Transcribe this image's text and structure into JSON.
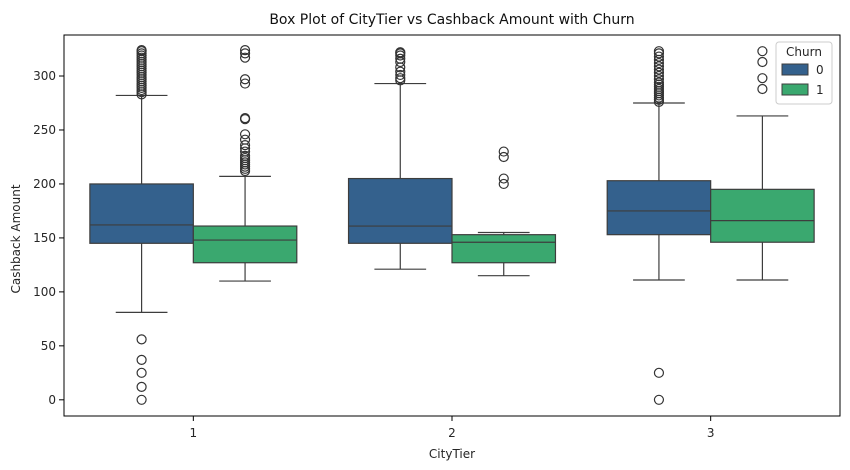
{
  "chart_data": {
    "type": "boxplot",
    "title": "Box Plot of CityTier vs Cashback Amount with Churn",
    "xlabel": "CityTier",
    "ylabel": "Cashback Amount",
    "categories": [
      "1",
      "2",
      "3"
    ],
    "ylim": [
      -15,
      338
    ],
    "yticks": [
      0,
      50,
      100,
      150,
      200,
      250,
      300
    ],
    "grid": false,
    "legend": {
      "title": "Churn",
      "placement": "top-right"
    },
    "series": [
      {
        "name": "0",
        "color": "#34618d",
        "boxes": [
          {
            "category": "1",
            "whisker_low": 81,
            "q1": 145,
            "median": 162,
            "q3": 200,
            "whisker_high": 282,
            "outliers": [
              0,
              12,
              25,
              37,
              56,
              283,
              285,
              287,
              289,
              291,
              293,
              295,
              297,
              299,
              301,
              303,
              305,
              307,
              309,
              311,
              313,
              315,
              317,
              319,
              321,
              323,
              324
            ]
          },
          {
            "category": "2",
            "whisker_low": 121,
            "q1": 145,
            "median": 161,
            "q3": 205,
            "whisker_high": 293,
            "outliers": [
              296,
              298,
              301,
              304,
              308,
              313,
              316,
              319,
              321,
              322
            ]
          },
          {
            "category": "3",
            "whisker_low": 111,
            "q1": 153,
            "median": 175,
            "q3": 203,
            "whisker_high": 275,
            "outliers": [
              0,
              25,
              276,
              278,
              280,
              282,
              284,
              286,
              288,
              290,
              292,
              294,
              297,
              300,
              303,
              306,
              309,
              312,
              315,
              318,
              321,
              323
            ]
          }
        ]
      },
      {
        "name": "1",
        "color": "#3aa86f",
        "boxes": [
          {
            "category": "1",
            "whisker_low": 110,
            "q1": 127,
            "median": 148,
            "q3": 161,
            "whisker_high": 207,
            "outliers": [
              212,
              214,
              216,
              218,
              220,
              222,
              224,
              226,
              230,
              233,
              236,
              241,
              246,
              260,
              261,
              293,
              297,
              317,
              321,
              324
            ]
          },
          {
            "category": "2",
            "whisker_low": 115,
            "q1": 127,
            "median": 146,
            "q3": 153,
            "whisker_high": 155,
            "outliers": [
              200,
              205,
              225,
              230
            ]
          },
          {
            "category": "3",
            "whisker_low": 111,
            "q1": 146,
            "median": 166,
            "q3": 195,
            "whisker_high": 263,
            "outliers": [
              288,
              298,
              313,
              323
            ]
          }
        ]
      }
    ]
  },
  "colors": {
    "frame": "#000000",
    "whisker": "#3d3d3d",
    "outlier_edge": "#333333"
  }
}
